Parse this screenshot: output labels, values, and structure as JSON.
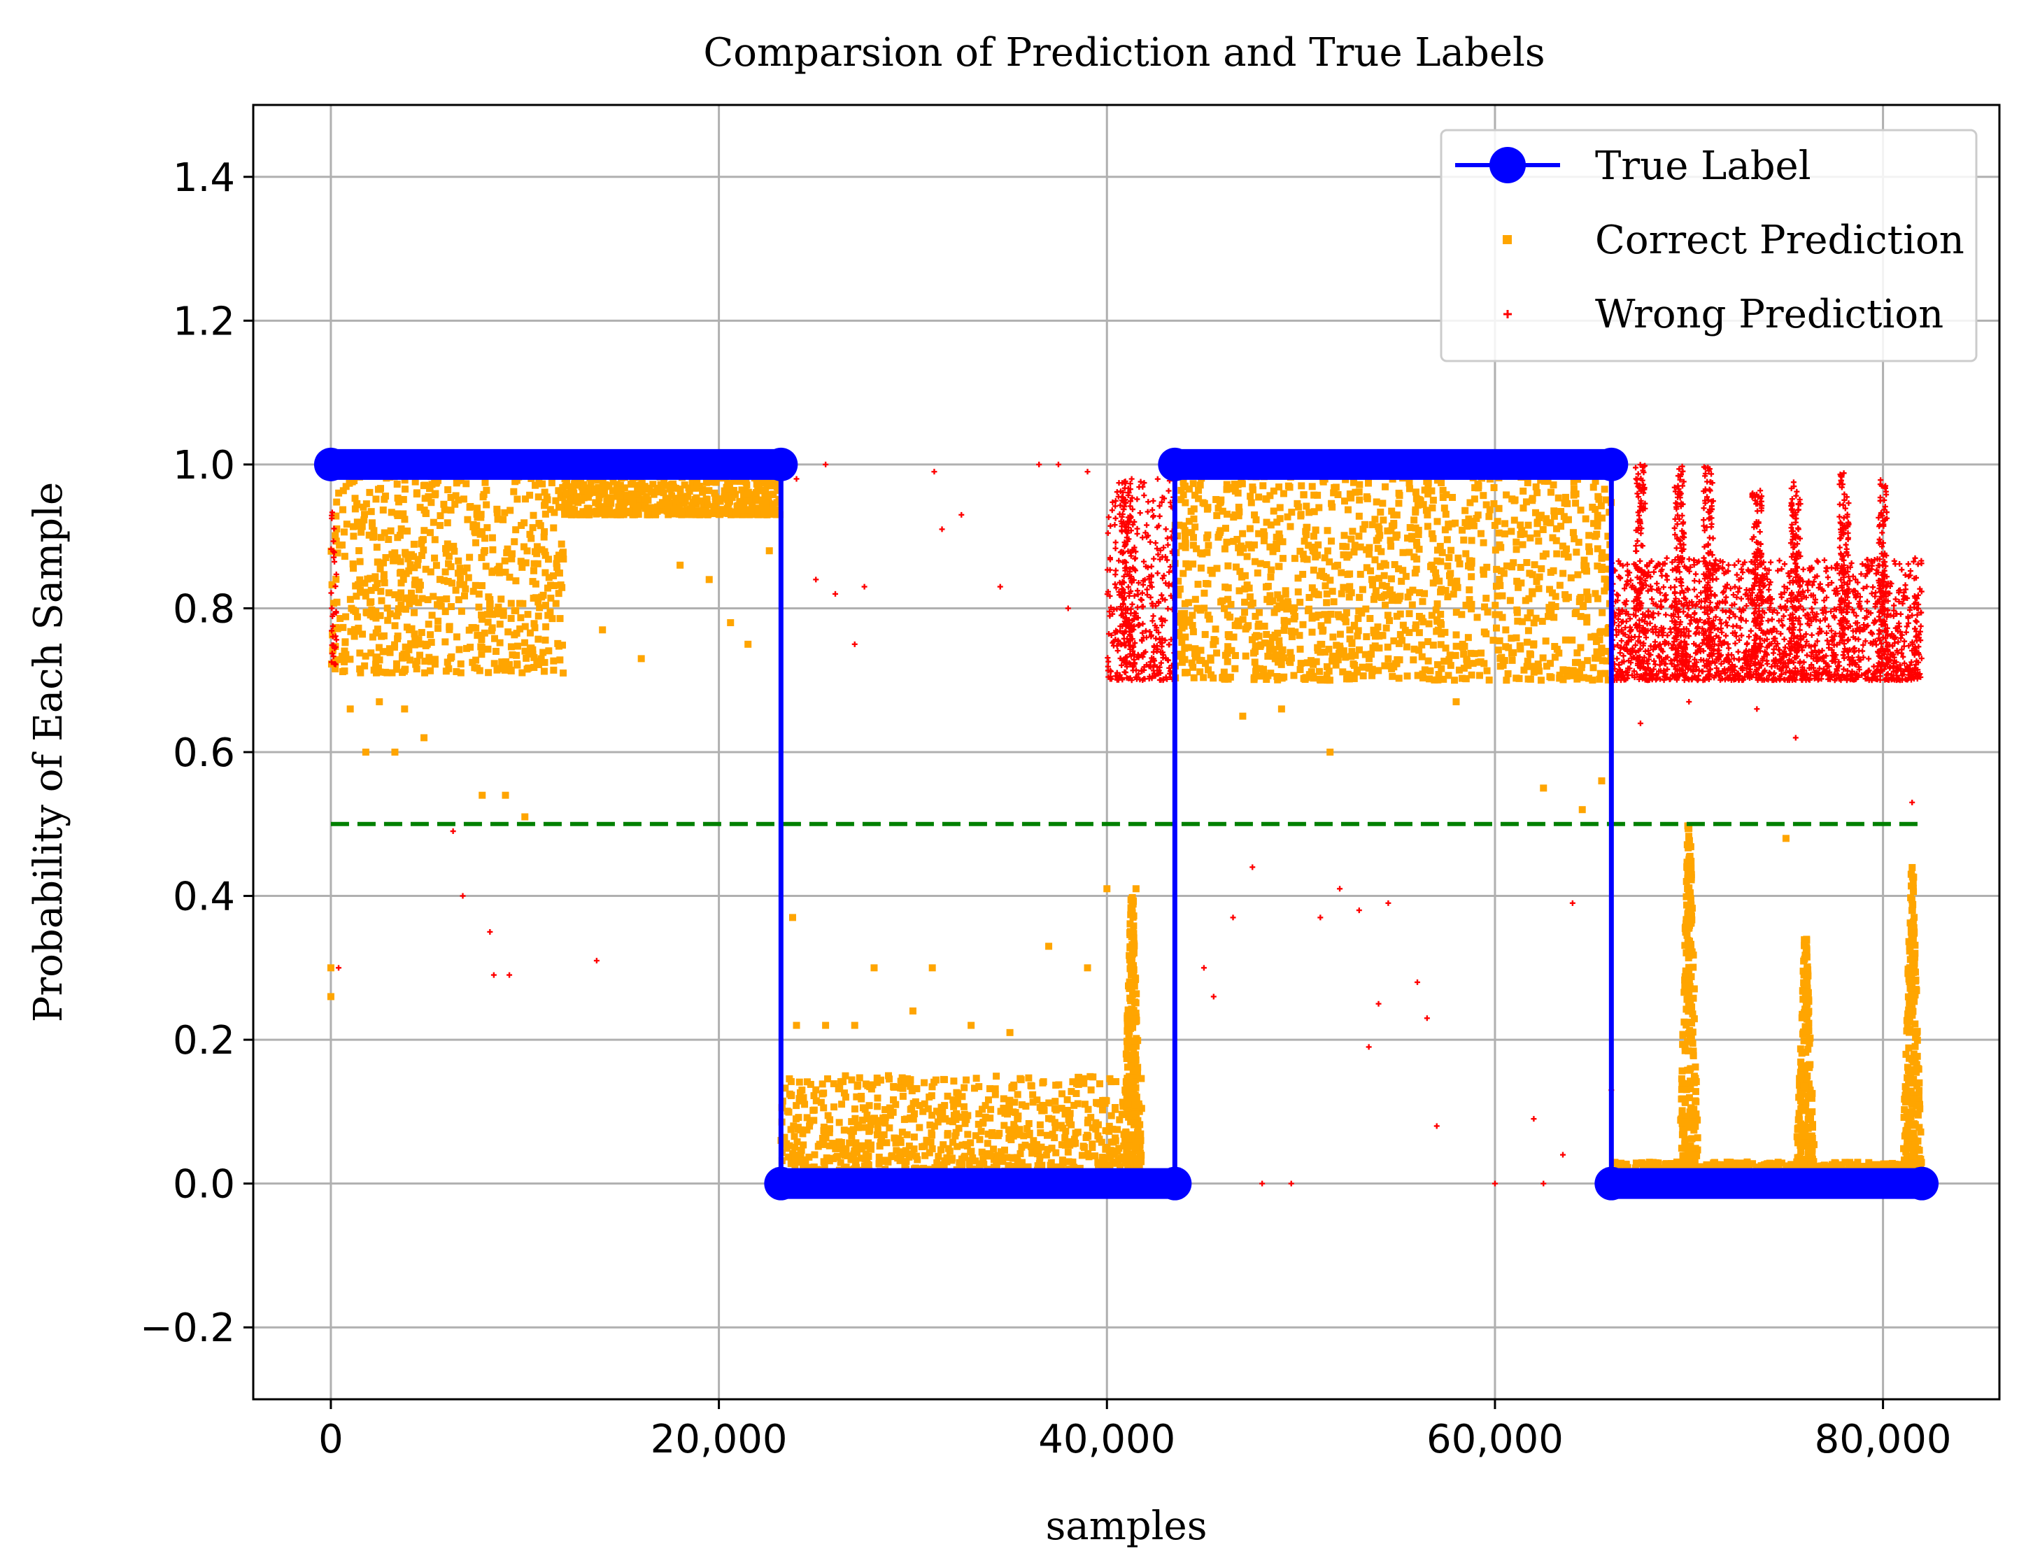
{
  "chart_data": {
    "type": "scatter",
    "title": "Comparsion of Prediction and True Labels",
    "xlabel": "samples",
    "ylabel": "Probability of Each Sample",
    "xlim": [
      -4000,
      86000
    ],
    "ylim": [
      -0.3,
      1.5
    ],
    "x_ticks": [
      {
        "value": 0,
        "label": "0"
      },
      {
        "value": 20000,
        "label": "20,000"
      },
      {
        "value": 40000,
        "label": "40,000"
      },
      {
        "value": 60000,
        "label": "60,000"
      },
      {
        "value": 80000,
        "label": "80,000"
      }
    ],
    "y_ticks": [
      {
        "value": -0.2,
        "label": "−0.2"
      },
      {
        "value": 0.0,
        "label": "0.0"
      },
      {
        "value": 0.2,
        "label": "0.2"
      },
      {
        "value": 0.4,
        "label": "0.4"
      },
      {
        "value": 0.6,
        "label": "0.6"
      },
      {
        "value": 0.8,
        "label": "0.8"
      },
      {
        "value": 1.0,
        "label": "1.0"
      },
      {
        "value": 1.2,
        "label": "1.2"
      },
      {
        "value": 1.4,
        "label": "1.4"
      }
    ],
    "grid": true,
    "legend_position": "top-right",
    "threshold": {
      "y": 0.5,
      "x_start": 0,
      "x_end": 82000,
      "color": "#008000",
      "style": "dashed"
    },
    "series": [
      {
        "name": "True Label",
        "kind": "line-with-markers",
        "color": "#0000ff",
        "x": [
          0,
          23200,
          23200,
          43500,
          43500,
          66000,
          66000,
          82000
        ],
        "y": [
          1,
          1,
          0,
          0,
          1,
          1,
          0,
          0
        ],
        "segments": [
          {
            "x_start": 0,
            "x_end": 23200,
            "y": 1
          },
          {
            "x_start": 23200,
            "x_end": 43500,
            "y": 0
          },
          {
            "x_start": 43500,
            "x_end": 66000,
            "y": 1
          },
          {
            "x_start": 66000,
            "x_end": 82000,
            "y": 0
          }
        ]
      },
      {
        "name": "Correct Prediction",
        "kind": "scatter",
        "color": "#ffa500",
        "clusters": [
          {
            "x_start": 0,
            "x_end": 12000,
            "y_min": 0.71,
            "y_max": 1.0
          },
          {
            "x_start": 12000,
            "x_end": 23200,
            "y_min": 0.93,
            "y_max": 1.0
          },
          {
            "x_start": 23200,
            "x_end": 41800,
            "y_min": 0.0,
            "y_max": 0.15
          },
          {
            "x_start": 43500,
            "x_end": 66000,
            "y_min": 0.7,
            "y_max": 1.0
          },
          {
            "x_start": 66000,
            "x_end": 82000,
            "y_min": 0.0,
            "y_max": 0.03
          }
        ],
        "spikes": [
          {
            "x": 41300,
            "y_max": 0.4
          },
          {
            "x": 70000,
            "y_max": 0.5
          },
          {
            "x": 76000,
            "y_max": 0.34
          },
          {
            "x": 81500,
            "y_max": 0.44
          }
        ],
        "outliers": [
          [
            1000,
            0.66
          ],
          [
            1800,
            0.6
          ],
          [
            2500,
            0.67
          ],
          [
            3300,
            0.6
          ],
          [
            3800,
            0.66
          ],
          [
            4800,
            0.62
          ],
          [
            7800,
            0.54
          ],
          [
            9000,
            0.54
          ],
          [
            10000,
            0.51
          ],
          [
            14000,
            0.77
          ],
          [
            16000,
            0.73
          ],
          [
            18000,
            0.86
          ],
          [
            19500,
            0.84
          ],
          [
            20600,
            0.78
          ],
          [
            21500,
            0.75
          ],
          [
            22600,
            0.88
          ],
          [
            24000,
            0.22
          ],
          [
            25500,
            0.22
          ],
          [
            27000,
            0.22
          ],
          [
            28000,
            0.3
          ],
          [
            30000,
            0.24
          ],
          [
            31000,
            0.3
          ],
          [
            33000,
            0.22
          ],
          [
            35000,
            0.21
          ],
          [
            37000,
            0.33
          ],
          [
            39000,
            0.3
          ],
          [
            40000,
            0.41
          ],
          [
            41500,
            0.41
          ],
          [
            47000,
            0.65
          ],
          [
            49000,
            0.66
          ],
          [
            51500,
            0.6
          ],
          [
            58000,
            0.67
          ],
          [
            62500,
            0.55
          ],
          [
            64500,
            0.52
          ],
          [
            65500,
            0.56
          ],
          [
            23800,
            0.37
          ],
          [
            73000,
            0.03
          ],
          [
            75000,
            0.48
          ],
          [
            0,
            0.3
          ],
          [
            0,
            0.26
          ]
        ]
      },
      {
        "name": "Wrong Prediction",
        "kind": "scatter",
        "color": "#ff0000",
        "clusters": [
          {
            "x_start": 0,
            "x_end": 300,
            "y_min": 0.72,
            "y_max": 1.0
          },
          {
            "x_start": 40000,
            "x_end": 43500,
            "y_min": 0.7,
            "y_max": 0.98
          },
          {
            "x_start": 66000,
            "x_end": 82000,
            "y_min": 0.7,
            "y_max": 0.87
          }
        ],
        "spikes": [
          {
            "x": 41000,
            "y_max": 0.98
          },
          {
            "x": 67500,
            "y_max": 1.0
          },
          {
            "x": 69500,
            "y_max": 1.0
          },
          {
            "x": 71000,
            "y_max": 1.0
          },
          {
            "x": 73500,
            "y_max": 0.98
          },
          {
            "x": 75500,
            "y_max": 0.98
          },
          {
            "x": 78000,
            "y_max": 0.99
          },
          {
            "x": 80000,
            "y_max": 0.98
          }
        ],
        "outliers": [
          [
            400,
            0.3
          ],
          [
            6300,
            0.49
          ],
          [
            6800,
            0.4
          ],
          [
            8200,
            0.35
          ],
          [
            8400,
            0.29
          ],
          [
            9200,
            0.29
          ],
          [
            13700,
            0.31
          ],
          [
            24000,
            0.98
          ],
          [
            25500,
            1.0
          ],
          [
            25000,
            0.84
          ],
          [
            26000,
            0.82
          ],
          [
            27000,
            0.75
          ],
          [
            27500,
            0.83
          ],
          [
            31100,
            0.99
          ],
          [
            31500,
            0.91
          ],
          [
            32500,
            0.93
          ],
          [
            34500,
            0.83
          ],
          [
            36500,
            1.0
          ],
          [
            37500,
            1.0
          ],
          [
            38000,
            0.8
          ],
          [
            39000,
            0.99
          ],
          [
            45000,
            0.3
          ],
          [
            45500,
            0.26
          ],
          [
            46500,
            0.37
          ],
          [
            47500,
            0.44
          ],
          [
            48000,
            0.0
          ],
          [
            49500,
            0.0
          ],
          [
            51000,
            0.37
          ],
          [
            52000,
            0.41
          ],
          [
            53000,
            0.38
          ],
          [
            53500,
            0.19
          ],
          [
            54000,
            0.25
          ],
          [
            54500,
            0.39
          ],
          [
            56000,
            0.28
          ],
          [
            56500,
            0.23
          ],
          [
            57000,
            0.08
          ],
          [
            60000,
            0.0
          ],
          [
            62000,
            0.09
          ],
          [
            62500,
            0.0
          ],
          [
            63500,
            0.04
          ],
          [
            64000,
            0.39
          ],
          [
            66000,
            0.13
          ],
          [
            67500,
            0.64
          ],
          [
            70000,
            0.67
          ],
          [
            73500,
            0.66
          ],
          [
            75500,
            0.62
          ],
          [
            81500,
            0.53
          ]
        ]
      }
    ]
  }
}
